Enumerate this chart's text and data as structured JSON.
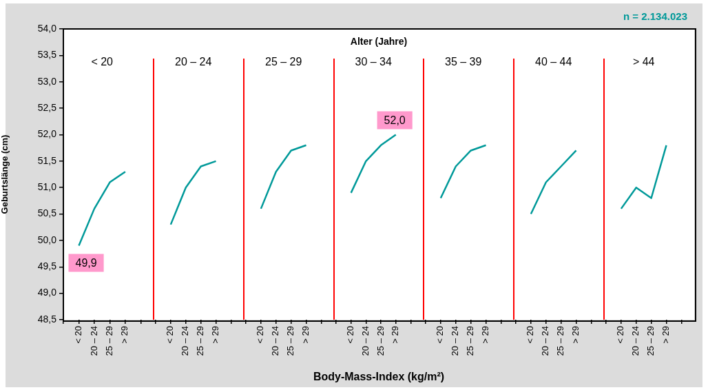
{
  "chart_data": [
    {
      "type": "other",
      "title": "Alter (Jahre)",
      "annotations": [
        "n = 2.134.023",
        "Body-Mass-Index (kg/m²)"
      ]
    },
    {
      "type": "line",
      "title": "< 20",
      "ylabel": "Geburtslänge (cm)",
      "categories": [
        "< 20",
        "20 – 24",
        "25 – 29",
        "> 29"
      ],
      "values": [
        49.9,
        50.6,
        51.1,
        51.3
      ],
      "color": "#009999",
      "marker": "none",
      "grid": false,
      "ylim": [
        48.5,
        54
      ],
      "yticks": [
        {
          "value": 48.5,
          "label": "48,5"
        },
        {
          "value": 49,
          "label": "49,0"
        },
        {
          "value": 49.5,
          "label": "49,5"
        },
        {
          "value": 50,
          "label": "50,0"
        },
        {
          "value": 50.5,
          "label": "50,5"
        },
        {
          "value": 51,
          "label": "51,0"
        },
        {
          "value": 51.5,
          "label": "51,5"
        },
        {
          "value": 52,
          "label": "52,0"
        },
        {
          "value": 52.5,
          "label": "52,5"
        },
        {
          "value": 53,
          "label": "53,0"
        },
        {
          "value": 53.5,
          "label": "53,5"
        },
        {
          "value": 54,
          "label": "54,0"
        }
      ],
      "annotations": [
        {
          "text": "49,9",
          "x": "< 20",
          "y": 49.9
        }
      ]
    },
    {
      "type": "line",
      "title": "20 – 24",
      "categories": [
        "< 20",
        "20 – 24",
        "25 – 29",
        "> 29"
      ],
      "values": [
        50.3,
        51.0,
        51.4,
        51.5
      ],
      "color": "#009999",
      "marker": "none",
      "grid": false,
      "ylim": [
        48.5,
        54
      ],
      "tick_labels": "x"
    },
    {
      "type": "line",
      "title": "25 – 29",
      "categories": [
        "< 20",
        "20 – 24",
        "25 – 29",
        "> 29"
      ],
      "values": [
        50.6,
        51.3,
        51.7,
        51.8
      ],
      "color": "#009999",
      "marker": "none",
      "grid": false,
      "ylim": [
        48.5,
        54
      ],
      "tick_labels": "x"
    },
    {
      "type": "line",
      "title": "30 – 34",
      "categories": [
        "< 20",
        "20 – 24",
        "25 – 29",
        "> 29"
      ],
      "values": [
        50.9,
        51.5,
        51.8,
        52.0
      ],
      "color": "#009999",
      "marker": "none",
      "grid": false,
      "ylim": [
        48.5,
        54
      ],
      "tick_labels": "x",
      "annotations": [
        {
          "text": "52,0",
          "x": "> 29",
          "y": 52.0
        }
      ]
    },
    {
      "type": "line",
      "title": "35 – 39",
      "categories": [
        "< 20",
        "20 – 24",
        "25 – 29",
        "> 29"
      ],
      "values": [
        50.8,
        51.4,
        51.7,
        51.8
      ],
      "color": "#009999",
      "marker": "none",
      "grid": false,
      "ylim": [
        48.5,
        54
      ],
      "tick_labels": "x"
    },
    {
      "type": "line",
      "title": "40 – 44",
      "categories": [
        "< 20",
        "20 – 24",
        "25 – 29",
        "> 29"
      ],
      "values": [
        50.5,
        51.1,
        51.4,
        51.7
      ],
      "color": "#009999",
      "marker": "none",
      "grid": false,
      "ylim": [
        48.5,
        54
      ],
      "tick_labels": "x"
    },
    {
      "type": "line",
      "title": "> 44",
      "categories": [
        "< 20",
        "20 – 24",
        "25 – 29",
        "> 29"
      ],
      "values": [
        50.6,
        51.0,
        50.8,
        51.8
      ],
      "color": "#009999",
      "marker": "none",
      "grid": false,
      "ylim": [
        48.5,
        54
      ],
      "tick_labels": "x"
    }
  ]
}
